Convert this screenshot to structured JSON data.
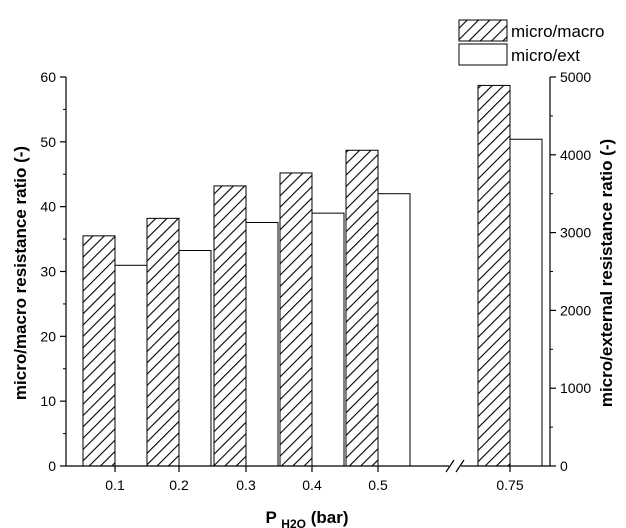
{
  "chart_data": {
    "type": "bar",
    "categories": [
      "0.1",
      "0.2",
      "0.3",
      "0.4",
      "0.5",
      "0.75"
    ],
    "axis_break_between": [
      "0.5",
      "0.75"
    ],
    "xlabel": {
      "main": "P",
      "subscript": "H2O",
      "suffix": " (bar)"
    },
    "ylabel_left": "micro/macro resistance ratio (-)",
    "ylabel_right": "micro/external resistance ratio (-)",
    "ylim_left": [
      0,
      60
    ],
    "ylim_right": [
      0,
      5000
    ],
    "yticks_left": [
      "0",
      "10",
      "20",
      "30",
      "40",
      "50",
      "60"
    ],
    "yticks_right": [
      "0",
      "1000",
      "2000",
      "3000",
      "4000",
      "5000"
    ],
    "grid": false,
    "legend_position": "top-right",
    "series": [
      {
        "name": "micro/macro",
        "axis": "left",
        "fill": "hatched",
        "values": [
          35.5,
          38.2,
          43.2,
          45.2,
          48.7,
          58.7
        ]
      },
      {
        "name": "micro/ext",
        "axis": "right",
        "fill": "white",
        "values": [
          2580,
          2770,
          3130,
          3250,
          3500,
          4200
        ]
      }
    ]
  }
}
